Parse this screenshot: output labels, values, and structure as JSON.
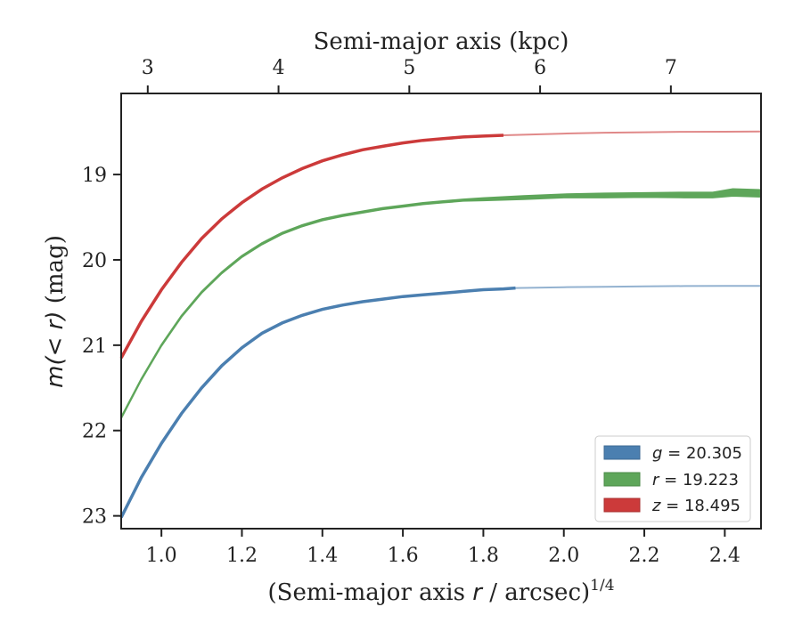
{
  "chart_data": {
    "type": "line",
    "xlabel_prefix": "(Semi-major axis ",
    "xlabel_var": "r",
    "xlabel_suffix": " / arcsec)",
    "xlabel_exponent": "1/4",
    "ylabel_var": "m(< r)",
    "ylabel_unit": " (mag)",
    "top_xlabel": "Semi-major axis (kpc)",
    "xlim": [
      0.9,
      2.49
    ],
    "ylim": [
      23.15,
      18.05
    ],
    "y_inverted": true,
    "xticks": [
      1.0,
      1.2,
      1.4,
      1.6,
      1.8,
      2.0,
      2.2,
      2.4
    ],
    "xtick_labels": [
      "1.0",
      "1.2",
      "1.4",
      "1.6",
      "1.8",
      "2.0",
      "2.2",
      "2.4"
    ],
    "yticks": [
      19,
      20,
      21,
      22,
      23
    ],
    "ytick_labels": [
      "19",
      "20",
      "21",
      "22",
      "23"
    ],
    "top_xticks": [
      3,
      4,
      5,
      6,
      7
    ],
    "top_xtick_labels": [
      "3",
      "4",
      "5",
      "6",
      "7"
    ],
    "top_xtick_positions": [
      0.966,
      1.291,
      1.616,
      1.941,
      2.266
    ],
    "grid": false,
    "legend_position": "lower right",
    "series": [
      {
        "name": "g = 20.305",
        "legend_var": "g",
        "legend_value": "20.305",
        "color": "#4b7fb0",
        "solid_x": [
          0.9,
          0.95,
          1.0,
          1.05,
          1.1,
          1.15,
          1.2,
          1.25,
          1.3,
          1.35,
          1.4,
          1.45,
          1.5,
          1.55,
          1.6,
          1.65,
          1.7,
          1.75,
          1.8,
          1.85,
          1.88
        ],
        "solid_y": [
          23.02,
          22.55,
          22.15,
          21.8,
          21.5,
          21.24,
          21.03,
          20.86,
          20.74,
          20.65,
          20.58,
          20.53,
          20.49,
          20.46,
          20.43,
          20.41,
          20.39,
          20.37,
          20.35,
          20.34,
          20.33
        ],
        "faded_x": [
          1.88,
          2.0,
          2.1,
          2.2,
          2.3,
          2.4,
          2.49
        ],
        "faded_y": [
          20.33,
          20.32,
          20.315,
          20.31,
          20.307,
          20.305,
          20.305
        ]
      },
      {
        "name": "r = 19.223",
        "legend_var": "r",
        "legend_value": "19.223",
        "color": "#5ea65a",
        "solid_x": [
          0.9,
          0.95,
          1.0,
          1.05,
          1.1,
          1.15,
          1.2,
          1.25,
          1.3,
          1.35,
          1.4,
          1.45,
          1.5,
          1.55,
          1.6,
          1.65,
          1.7,
          1.75,
          1.8,
          1.9,
          2.0,
          2.1,
          2.2,
          2.3,
          2.37,
          2.42,
          2.49
        ],
        "solid_y": [
          21.85,
          21.4,
          21.0,
          20.66,
          20.38,
          20.15,
          19.96,
          19.81,
          19.69,
          19.6,
          19.53,
          19.48,
          19.44,
          19.4,
          19.37,
          19.34,
          19.32,
          19.3,
          19.29,
          19.27,
          19.25,
          19.245,
          19.24,
          19.24,
          19.24,
          19.21,
          19.22
        ],
        "band_width": [
          2,
          2,
          2,
          2,
          2,
          2,
          2,
          2,
          2,
          2,
          2,
          2,
          2,
          2,
          2,
          2,
          2,
          2,
          3,
          4,
          4,
          5,
          5,
          6,
          6,
          8,
          8
        ]
      },
      {
        "name": "z = 18.495",
        "legend_var": "z",
        "legend_value": "18.495",
        "color": "#cc3a3a",
        "solid_x": [
          0.9,
          0.95,
          1.0,
          1.05,
          1.1,
          1.15,
          1.2,
          1.25,
          1.3,
          1.35,
          1.4,
          1.45,
          1.5,
          1.55,
          1.6,
          1.65,
          1.7,
          1.75,
          1.8,
          1.85
        ],
        "solid_y": [
          21.15,
          20.72,
          20.35,
          20.03,
          19.75,
          19.52,
          19.33,
          19.17,
          19.04,
          18.93,
          18.84,
          18.77,
          18.71,
          18.67,
          18.63,
          18.6,
          18.58,
          18.56,
          18.55,
          18.54
        ],
        "faded_x": [
          1.85,
          2.0,
          2.1,
          2.2,
          2.3,
          2.4,
          2.49
        ],
        "faded_y": [
          18.54,
          18.52,
          18.51,
          18.505,
          18.5,
          18.498,
          18.495
        ]
      }
    ]
  }
}
